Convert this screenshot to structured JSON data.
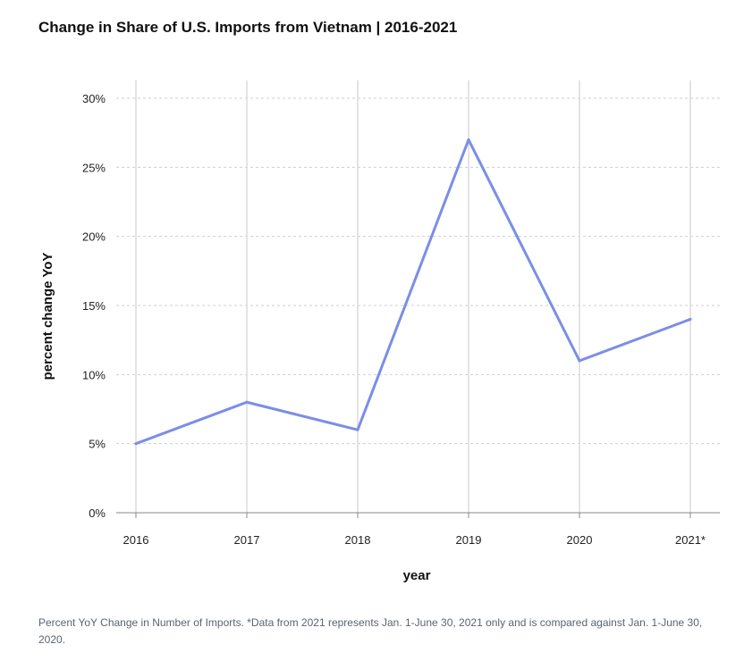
{
  "chart_data": {
    "type": "line",
    "title": "Change in Share of U.S. Imports from Vietnam | 2016-2021",
    "xlabel": "year",
    "ylabel": "percent change YoY",
    "categories": [
      "2016",
      "2017",
      "2018",
      "2019",
      "2020",
      "2021*"
    ],
    "series": [
      {
        "values": [
          5,
          8,
          6,
          27,
          11,
          14
        ]
      }
    ],
    "ylim": [
      0,
      30
    ],
    "yticks": [
      0,
      5,
      10,
      15,
      20,
      25,
      30
    ],
    "ytick_labels": [
      "0%",
      "5%",
      "10%",
      "15%",
      "20%",
      "25%",
      "30%"
    ],
    "grid": true,
    "line_color": "#7b8ee6",
    "footnote": "Percent YoY Change in Number of Imports. *Data from 2021 represents Jan. 1-June 30, 2021 only and is compared against Jan. 1-June 30, 2020."
  }
}
